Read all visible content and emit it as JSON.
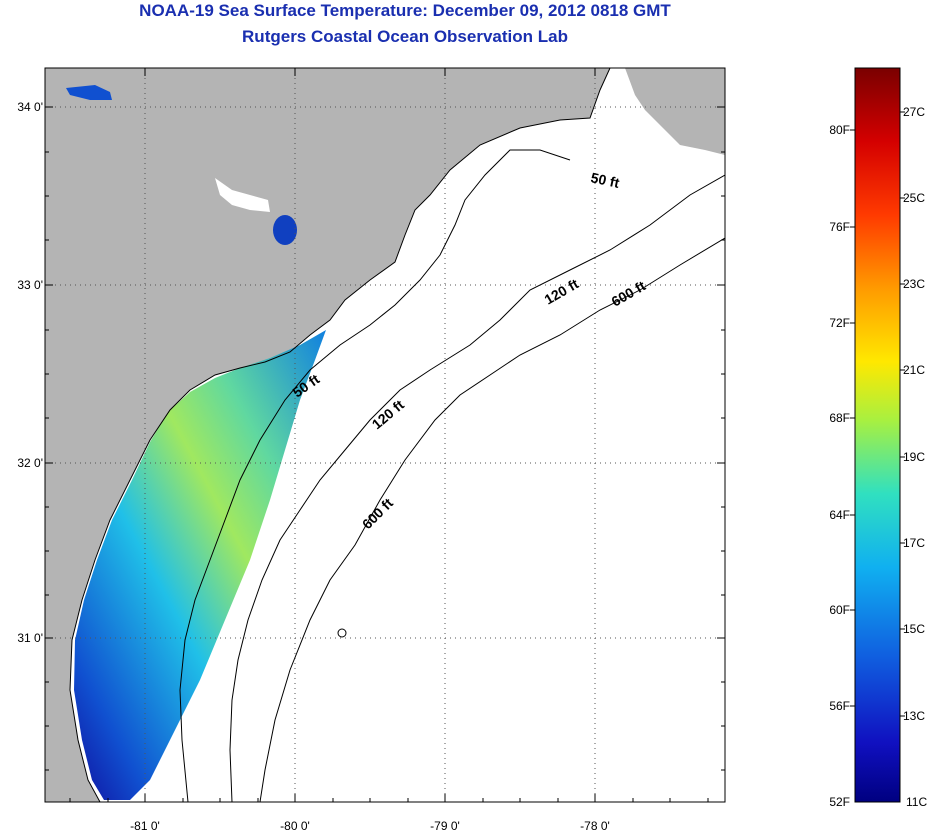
{
  "header": {
    "title": "NOAA-19 Sea Surface Temperature:  December 09, 2012 0818 GMT",
    "subtitle": "Rutgers Coastal Ocean Observation Lab"
  },
  "map": {
    "x_ticks": [
      "-81 0'",
      "-80 0'",
      "-79 0'",
      "-78 0'"
    ],
    "y_ticks": [
      "34 0'",
      "33 0'",
      "32 0'",
      "31 0'"
    ],
    "land_color": "#b4b4b4",
    "ocean_color": "#ffffff",
    "contours": {
      "c50_a": "50 ft",
      "c50_b": "50 ft",
      "c120_a": "120 ft",
      "c120_b": "120 ft",
      "c600_a": "600 ft",
      "c600_b": "600 ft"
    }
  },
  "colorbar": {
    "fahrenheit": [
      "80F",
      "76F",
      "72F",
      "68F",
      "64F",
      "60F",
      "56F",
      "52F"
    ],
    "celsius": [
      "27C",
      "25C",
      "23C",
      "21C",
      "19C",
      "17C",
      "15C",
      "13C",
      "11C"
    ],
    "colors": [
      "#7a0000",
      "#d40000",
      "#ff3a00",
      "#ff9a00",
      "#ffe800",
      "#a8f040",
      "#30e0c0",
      "#10b0f0",
      "#1060e0",
      "#1010c0",
      "#000080"
    ]
  }
}
